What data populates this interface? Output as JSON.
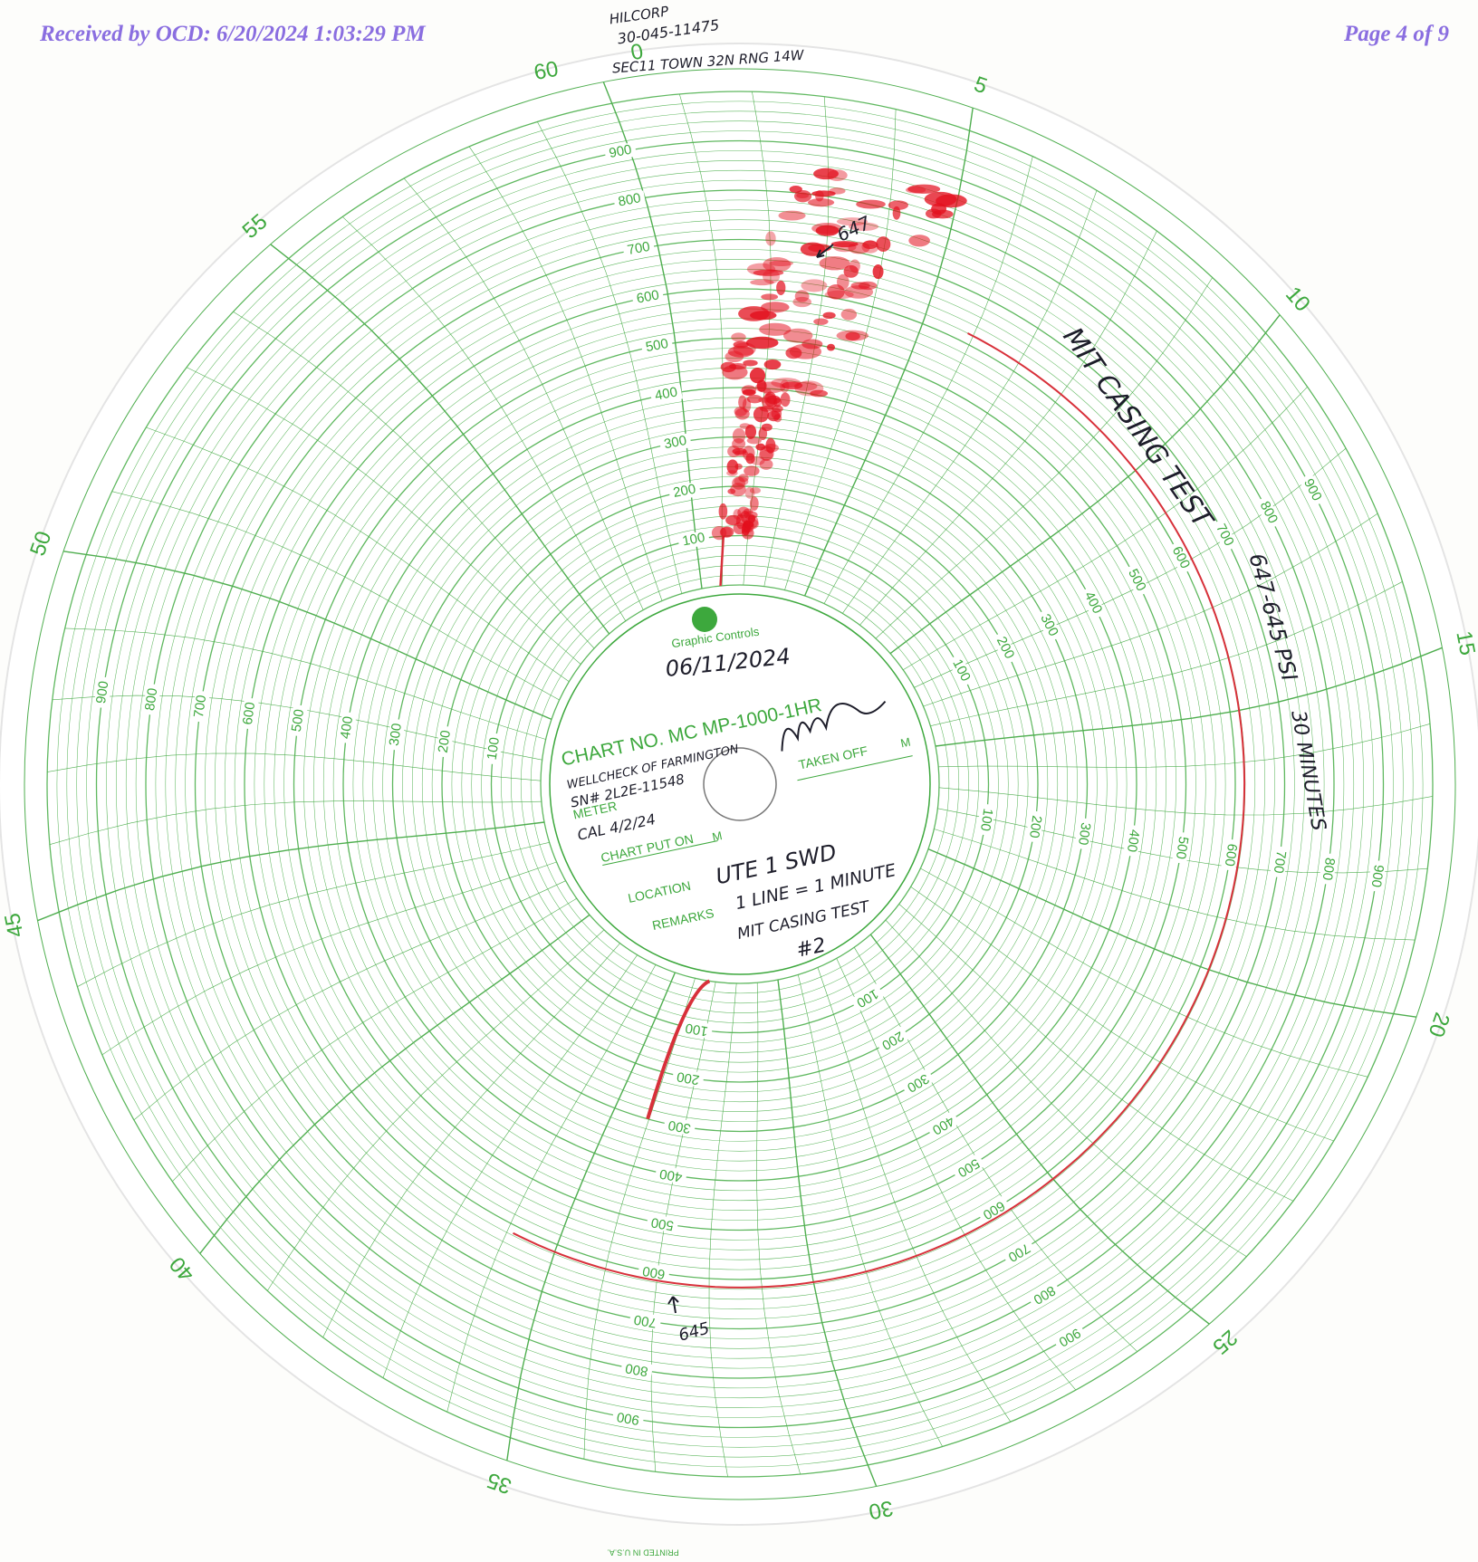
{
  "header": {
    "received": "Received by OCD: 6/20/2024 1:03:29 PM",
    "page": "Page 4 of 9"
  },
  "chart_face": {
    "minute_labels": [
      "0",
      "5",
      "10",
      "15",
      "20",
      "25",
      "30",
      "35",
      "40",
      "45",
      "50",
      "55"
    ],
    "minute_end_label": "60",
    "pressure_labels": [
      "100",
      "200",
      "300",
      "400",
      "500",
      "600",
      "700",
      "800",
      "900"
    ],
    "brand": "Graphic Controls",
    "chart_no": "CHART NO. MC MP-1000-1HR",
    "meter_label": "METER",
    "chart_put_on_label": "CHART PUT ON",
    "taken_off_label": "TAKEN OFF",
    "m_label": "M",
    "location_label": "LOCATION",
    "remarks_label": "REMARKS",
    "printed": "PRINTED IN U.S.A."
  },
  "handwriting": {
    "well_lines": [
      "HILCORP",
      "30-045-11475",
      "SEC11 TOWN 32N RNG 14W"
    ],
    "date": "06/11/2024",
    "meter_lines": [
      "WELLCHECK OF FARMINGTON",
      "SN# 2L2E-11548",
      "CAL 4/2/24"
    ],
    "location": "UTE 1 SWD",
    "remarks_lines": [
      "1 LINE = 1 MINUTE",
      "MIT CASING TEST",
      "#2"
    ],
    "start_reading": "647",
    "test_title": "MIT CASING TEST",
    "pressure_note": "647-645 PSI",
    "duration_note": "30 MINUTES",
    "end_reading": "645"
  }
}
